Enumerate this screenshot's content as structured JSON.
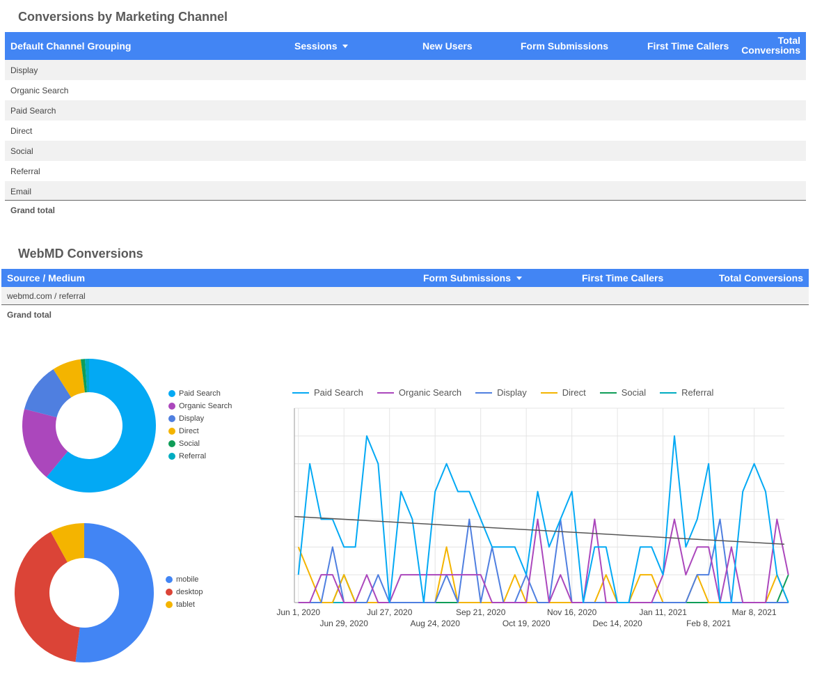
{
  "table1": {
    "title": "Conversions by Marketing Channel",
    "headers": [
      "Default Channel Grouping",
      "Sessions",
      "New Users",
      "Form Submissions",
      "First Time Callers",
      "Total",
      "Conversions"
    ],
    "rows": [
      "Display",
      "Organic Search",
      "Paid Search",
      "Direct",
      "Social",
      "Referral",
      "Email"
    ],
    "grand_total": "Grand total"
  },
  "table2": {
    "title": "WebMD Conversions",
    "headers": [
      "Source / Medium",
      "Form Submissions",
      "First Time Callers",
      "Total Conversions"
    ],
    "rows": [
      "webmd.com / referral"
    ],
    "grand_total": "Grand total"
  },
  "colors": {
    "header_bg": "#4285f4",
    "paid_search": "#03a9f4",
    "organic_search": "#ab47bc",
    "display": "#4f7fe0",
    "direct": "#f4b400",
    "social": "#0f9d58",
    "referral": "#00acc1",
    "mobile": "#4285f4",
    "desktop": "#db4437",
    "tablet": "#f4b400",
    "trend": "#555555"
  },
  "chart_data": [
    {
      "type": "pie",
      "donut": true,
      "labels": [
        "Paid Search",
        "Organic Search",
        "Display",
        "Direct",
        "Social",
        "Referral"
      ],
      "values": [
        61,
        18,
        12,
        7,
        1,
        1
      ]
    },
    {
      "type": "pie",
      "donut": true,
      "labels": [
        "mobile",
        "desktop",
        "tablet"
      ],
      "values": [
        52,
        40,
        8
      ]
    },
    {
      "type": "line",
      "x_tick_labels": [
        "Jun 1, 2020",
        "Jun 29, 2020",
        "Jul 27, 2020",
        "Aug 24, 2020",
        "Sep 21, 2020",
        "Oct 19, 2020",
        "Nov 16, 2020",
        "Dec 14, 2020",
        "Jan 11, 2021",
        "Feb 8, 2021",
        "Mar 8, 2021"
      ],
      "x_tick_positions": [
        0,
        4,
        8,
        12,
        16,
        20,
        24,
        28,
        32,
        36,
        40
      ],
      "legend": "top",
      "grid": true,
      "series": [
        {
          "name": "Paid Search",
          "color_key": "paid_search",
          "values": [
            1,
            5,
            3,
            3,
            2,
            2,
            6,
            5,
            0,
            4,
            3,
            0,
            4,
            5,
            4,
            4,
            3,
            2,
            2,
            2,
            1,
            4,
            2,
            3,
            4,
            0,
            2,
            2,
            0,
            0,
            2,
            2,
            1,
            6,
            2,
            3,
            5,
            0,
            0,
            4,
            5,
            4,
            1
          ]
        },
        {
          "name": "Organic Search",
          "color_key": "organic_search",
          "values": [
            0,
            0,
            1,
            1,
            0,
            0,
            1,
            0,
            0,
            1,
            1,
            1,
            1,
            1,
            1,
            1,
            1,
            0,
            0,
            0,
            0,
            3,
            0,
            1,
            0,
            0,
            3,
            0,
            0,
            0,
            0,
            0,
            1,
            3,
            1,
            2,
            2,
            0,
            2,
            0,
            0,
            0,
            3,
            1,
            1
          ]
        },
        {
          "name": "Display",
          "color_key": "display",
          "values": [
            0,
            0,
            0,
            2,
            0,
            0,
            0,
            1,
            0,
            0,
            0,
            0,
            0,
            1,
            0,
            3,
            0,
            2,
            0,
            0,
            1,
            0,
            0,
            3,
            0,
            0,
            0,
            0,
            0,
            0,
            0,
            0,
            0,
            0,
            0,
            1,
            1,
            3,
            0,
            0,
            0,
            0,
            0,
            0,
            0
          ]
        },
        {
          "name": "Direct",
          "color_key": "direct",
          "values": [
            2,
            1,
            0,
            0,
            1,
            0,
            0,
            0,
            0,
            0,
            0,
            0,
            0,
            2,
            0,
            0,
            0,
            0,
            0,
            1,
            0,
            0,
            0,
            0,
            0,
            0,
            0,
            1,
            0,
            0,
            1,
            1,
            0,
            0,
            0,
            1,
            0,
            0,
            0,
            0,
            0,
            0,
            1,
            0,
            1,
            1,
            0
          ]
        },
        {
          "name": "Social",
          "color_key": "social",
          "values": [
            0,
            0,
            0,
            0,
            1,
            0,
            0,
            0,
            0,
            0,
            0,
            0,
            0,
            0,
            0,
            0,
            0,
            0,
            0,
            0,
            0,
            0,
            0,
            0,
            0,
            0,
            0,
            0,
            0,
            0,
            0,
            0,
            0,
            0,
            0,
            0,
            0,
            0,
            0,
            0,
            0,
            0,
            0,
            1,
            0,
            0,
            0
          ]
        },
        {
          "name": "Referral",
          "color_key": "referral",
          "values": [
            0,
            0,
            0,
            0,
            0,
            0,
            0,
            0,
            0,
            0,
            0,
            0,
            0,
            0,
            0,
            0,
            0,
            0,
            0,
            0,
            0,
            0,
            0,
            0,
            0,
            0,
            0,
            0,
            0,
            0,
            0,
            0,
            0,
            0,
            0,
            0,
            0,
            0,
            0,
            0,
            0,
            0,
            0,
            0,
            0
          ]
        }
      ],
      "trendline": {
        "start": 3.1,
        "end": 2.1
      },
      "ylim": [
        0,
        7
      ]
    }
  ]
}
